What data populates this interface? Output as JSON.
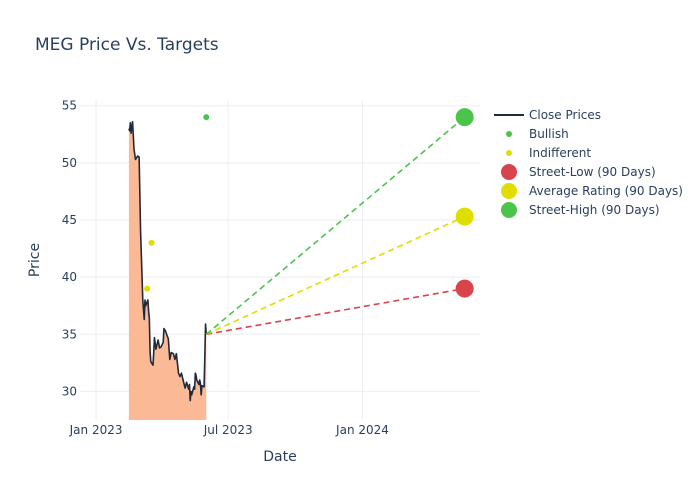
{
  "chart_data": {
    "type": "line",
    "title": "MEG Price Vs. Targets",
    "xlabel": "Date",
    "ylabel": "Price",
    "ylim": [
      27.5,
      55.5
    ],
    "xlim": [
      "2022-12-10",
      "2024-06-10"
    ],
    "x_ticks": [
      {
        "date": "2023-01-01",
        "label": "Jan 2023"
      },
      {
        "date": "2023-07-01",
        "label": "Jul 2023"
      },
      {
        "date": "2024-01-01",
        "label": "Jan 2024"
      }
    ],
    "y_ticks": [
      30,
      35,
      40,
      45,
      50,
      55
    ],
    "grid": true,
    "legend_position": "right",
    "colors": {
      "close": "#1f2a3c",
      "fill": "#fbb995",
      "bullish": "#4cc44c",
      "indifferent": "#dede00",
      "low": "#d9434b",
      "average": "#dede00",
      "high": "#4cc44c"
    },
    "close_prices": {
      "name": "Close Prices",
      "dates": [
        "2023-02-15",
        "2023-02-16",
        "2023-02-17",
        "2023-02-18",
        "2023-02-20",
        "2023-02-22",
        "2023-02-24",
        "2023-02-27",
        "2023-03-01",
        "2023-03-03",
        "2023-03-06",
        "2023-03-08",
        "2023-03-09",
        "2023-03-10",
        "2023-03-13",
        "2023-03-14",
        "2023-03-15",
        "2023-03-16",
        "2023-03-17",
        "2023-03-20",
        "2023-03-21",
        "2023-03-22",
        "2023-03-24",
        "2023-03-27",
        "2023-03-29",
        "2023-03-31",
        "2023-04-03",
        "2023-04-04",
        "2023-04-06",
        "2023-04-10",
        "2023-04-12",
        "2023-04-14",
        "2023-04-17",
        "2023-04-19",
        "2023-04-21",
        "2023-04-24",
        "2023-04-26",
        "2023-04-28",
        "2023-05-01",
        "2023-05-03",
        "2023-05-05",
        "2023-05-08",
        "2023-05-09",
        "2023-05-10",
        "2023-05-11",
        "2023-05-12",
        "2023-05-15",
        "2023-05-16",
        "2023-05-17",
        "2023-05-18",
        "2023-05-19",
        "2023-05-22",
        "2023-05-23",
        "2023-05-24",
        "2023-05-25",
        "2023-05-26",
        "2023-05-29",
        "2023-05-30",
        "2023-05-31",
        "2023-06-01"
      ],
      "values": [
        53.0,
        52.8,
        53.5,
        52.6,
        53.6,
        51.2,
        50.3,
        50.6,
        50.5,
        44.0,
        38.0,
        36.3,
        38.0,
        37.5,
        38.0,
        37.0,
        36.4,
        33.5,
        32.6,
        32.3,
        33.4,
        34.7,
        33.7,
        34.5,
        33.8,
        33.9,
        34.3,
        35.5,
        35.3,
        34.6,
        32.8,
        33.4,
        33.3,
        32.8,
        33.3,
        31.6,
        31.3,
        31.6,
        30.8,
        30.3,
        30.8,
        30.2,
        30.6,
        29.2,
        30.0,
        29.7,
        30.4,
        30.2,
        31.6,
        31.4,
        31.0,
        30.6,
        31.0,
        30.7,
        29.7,
        30.5,
        30.4,
        33.0,
        35.9,
        35.0
      ]
    },
    "bullish": {
      "name": "Bullish",
      "points": [
        {
          "date": "2023-06-01",
          "value": 54.0
        }
      ]
    },
    "indifferent": {
      "name": "Indifferent",
      "points": [
        {
          "date": "2023-03-12",
          "value": 39.0
        },
        {
          "date": "2023-03-18",
          "value": 43.0
        }
      ]
    },
    "targets": {
      "start": {
        "date": "2023-06-01",
        "value": 35.0
      },
      "end_date": "2024-05-20",
      "low": {
        "name": "Street-Low (90 Days)",
        "value": 39.0
      },
      "average": {
        "name": "Average Rating (90 Days)",
        "value": 45.3
      },
      "high": {
        "name": "Street-High (90 Days)",
        "value": 54.0
      }
    }
  }
}
